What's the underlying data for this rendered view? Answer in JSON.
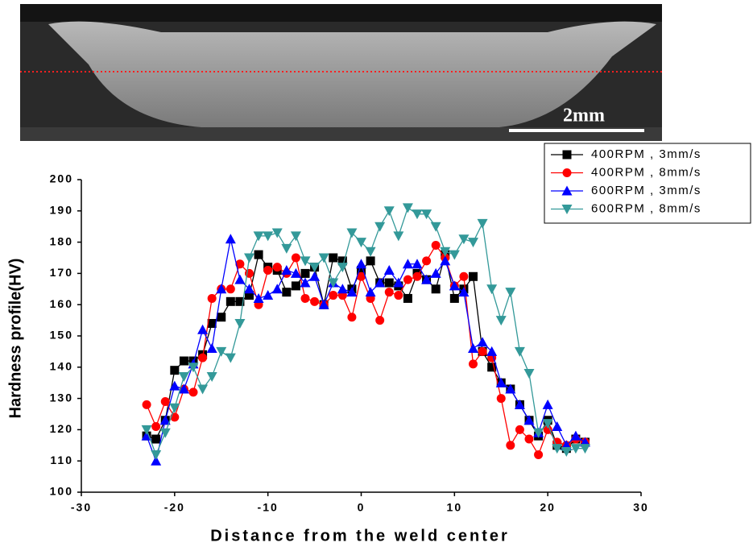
{
  "chart_data": {
    "type": "line",
    "annotations": [
      "2mm"
    ],
    "x_label": "Distance from the weld center",
    "y_label": "Hardness profile(HV)",
    "x": [
      -23,
      -22,
      -21,
      -20,
      -19,
      -18,
      -17,
      -16,
      -15,
      -14,
      -13,
      -12,
      -11,
      -10,
      -9,
      -8,
      -7,
      -6,
      -5,
      -4,
      -3,
      -2,
      -1,
      0,
      1,
      2,
      3,
      4,
      5,
      6,
      7,
      8,
      9,
      10,
      11,
      12,
      13,
      14,
      15,
      16,
      17,
      18,
      19,
      20,
      21,
      22,
      23,
      24
    ],
    "series": [
      {
        "name": "400RPM , 3mm/s",
        "color": "#000000",
        "marker": "square",
        "values": [
          118,
          117,
          123,
          139,
          142,
          142,
          144,
          154,
          156,
          161,
          161,
          163,
          176,
          172,
          171,
          164,
          166,
          170,
          172,
          160,
          175,
          174,
          165,
          171,
          174,
          167,
          167,
          166,
          162,
          170,
          168,
          165,
          176,
          162,
          165,
          169,
          145,
          140,
          135,
          133,
          128,
          123,
          118,
          123,
          115,
          114,
          117,
          116
        ]
      },
      {
        "name": "400RPM , 8mm/s",
        "color": "#ff0000",
        "marker": "circle",
        "values": [
          128,
          121,
          129,
          124,
          133,
          132,
          143,
          162,
          165,
          165,
          173,
          170,
          160,
          171,
          172,
          170,
          175,
          162,
          161,
          160,
          163,
          163,
          156,
          169,
          162,
          155,
          164,
          163,
          168,
          169,
          174,
          179,
          175,
          166,
          169,
          141,
          145,
          143,
          130,
          115,
          120,
          117,
          112,
          120,
          116,
          115,
          117,
          116
        ]
      },
      {
        "name": "600RPM , 3mm/s",
        "color": "#0000ff",
        "marker": "triangle-up",
        "values": [
          118,
          110,
          123,
          134,
          133,
          141,
          152,
          146,
          165,
          181,
          168,
          165,
          162,
          163,
          165,
          171,
          170,
          167,
          169,
          160,
          167,
          165,
          164,
          173,
          164,
          167,
          171,
          167,
          173,
          173,
          168,
          170,
          174,
          166,
          164,
          146,
          148,
          145,
          135,
          133,
          128,
          123,
          119,
          128,
          121,
          115,
          118,
          116
        ]
      },
      {
        "name": "600RPM , 8mm/s",
        "color": "#339999",
        "marker": "triangle-down",
        "values": [
          120,
          112,
          119,
          127,
          137,
          140,
          133,
          137,
          145,
          143,
          154,
          175,
          182,
          182,
          183,
          178,
          182,
          174,
          172,
          175,
          167,
          172,
          183,
          180,
          177,
          185,
          190,
          182,
          191,
          189,
          189,
          185,
          177,
          176,
          181,
          180,
          186,
          165,
          155,
          164,
          145,
          138,
          119,
          122,
          114,
          113,
          114,
          114
        ]
      }
    ],
    "xlim": [
      -30,
      30
    ],
    "xticks": [
      -30,
      -20,
      -10,
      0,
      10,
      20,
      30
    ],
    "ylim": [
      100,
      200
    ],
    "yticks": [
      100,
      110,
      120,
      130,
      140,
      150,
      160,
      170,
      180,
      190,
      200
    ],
    "legend": "upper right"
  }
}
